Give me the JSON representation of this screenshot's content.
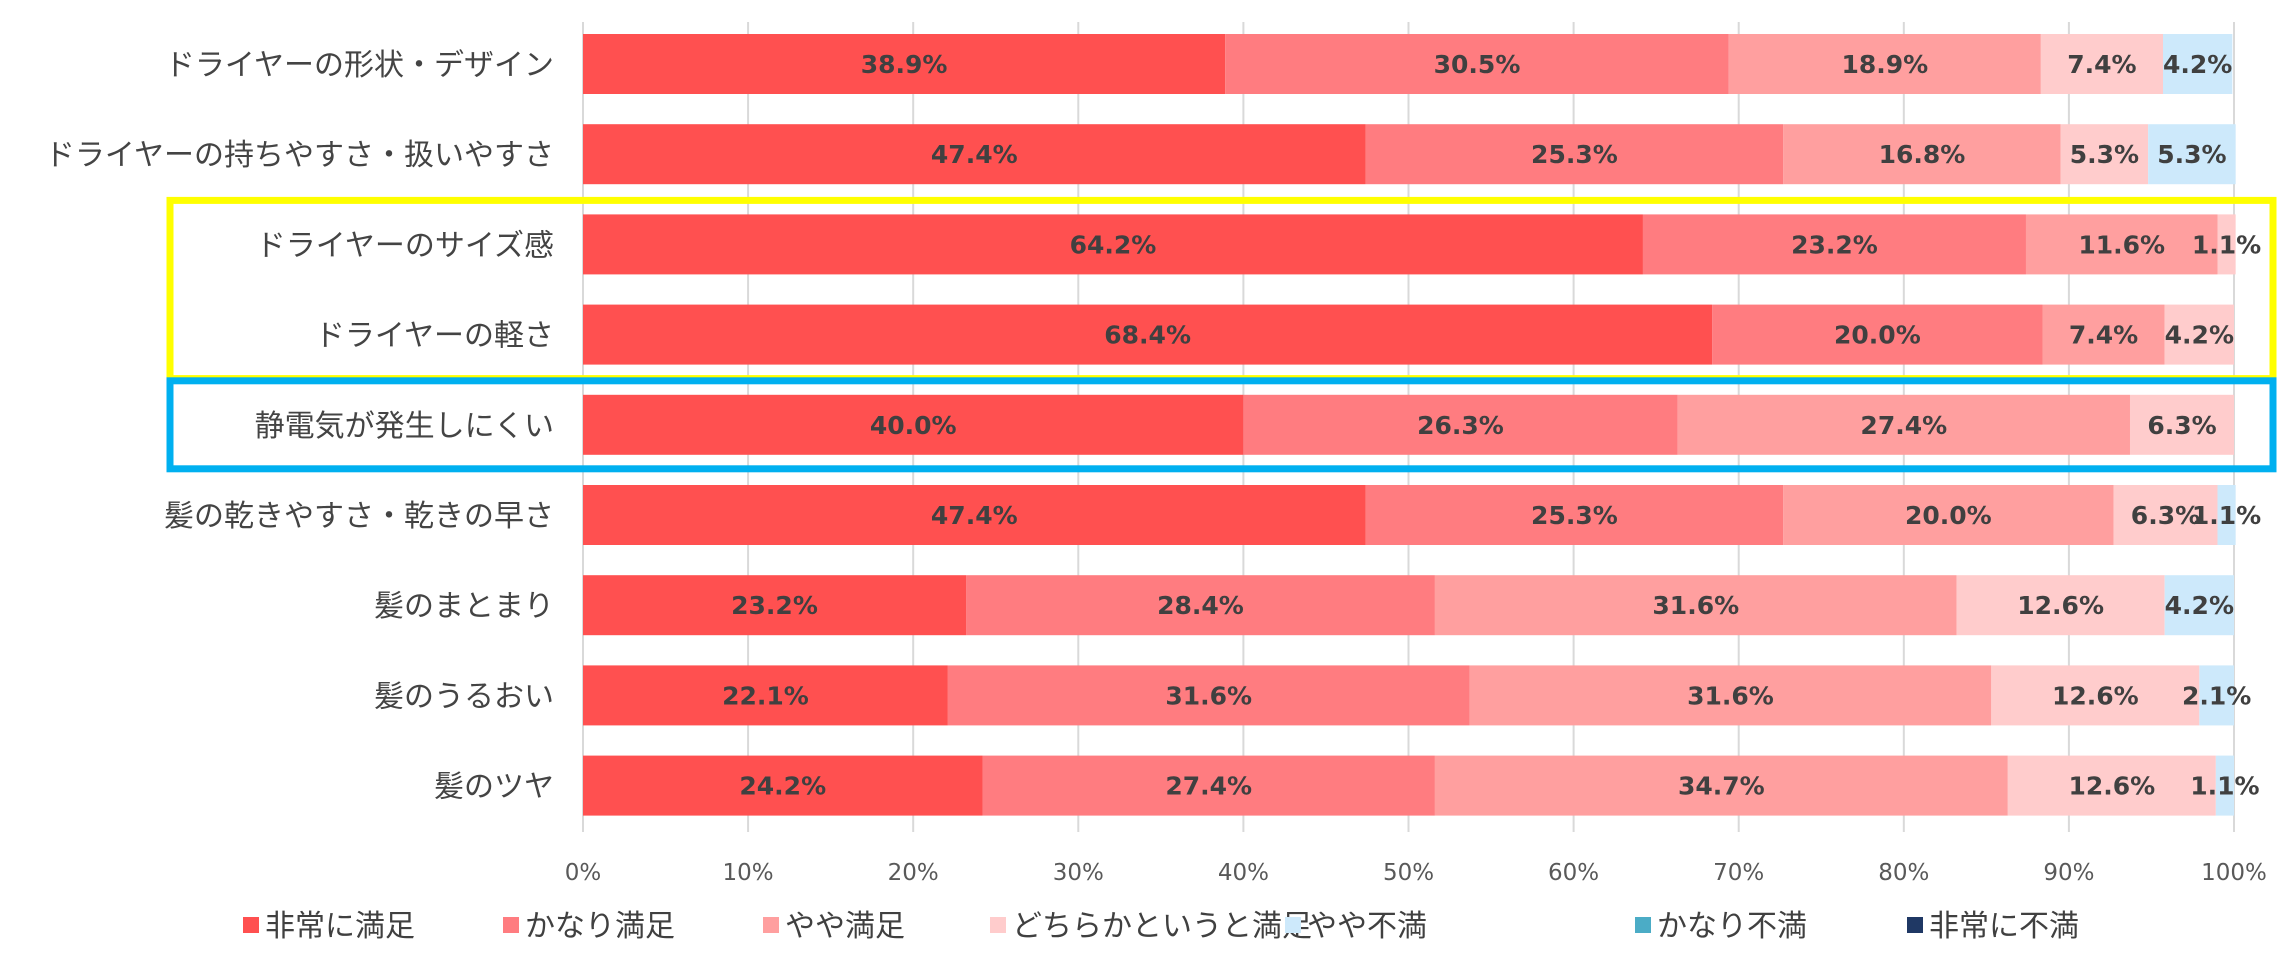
{
  "chart_data": {
    "type": "bar",
    "orientation": "horizontal",
    "stacked": true,
    "percent_stacked": true,
    "title": "",
    "xlabel": "",
    "ylabel": "",
    "xlim": [
      0,
      100
    ],
    "x_ticks": [
      "0%",
      "10%",
      "20%",
      "30%",
      "40%",
      "50%",
      "60%",
      "70%",
      "80%",
      "90%",
      "100%"
    ],
    "grid": "vertical",
    "legend_position": "bottom",
    "categories": [
      "ドライヤーの形状・デザイン",
      "ドライヤーの持ちやすさ・扱いやすさ",
      "ドライヤーのサイズ感",
      "ドライヤーの軽さ",
      "静電気が発生しにくい",
      "髪の乾きやすさ・乾きの早さ",
      "髪のまとまり",
      "髪のうるおい",
      "髪のツヤ"
    ],
    "series": [
      {
        "name": "非常に満足",
        "color": "#FF5050",
        "values": [
          38.9,
          47.4,
          64.2,
          68.4,
          40.0,
          47.4,
          23.2,
          22.1,
          24.2
        ]
      },
      {
        "name": "かなり満足",
        "color": "#FF7C80",
        "values": [
          30.5,
          25.3,
          23.2,
          20.0,
          26.3,
          25.3,
          28.4,
          31.6,
          27.4
        ]
      },
      {
        "name": "やや満足",
        "color": "#FF9F9F",
        "values": [
          18.9,
          16.8,
          11.6,
          7.4,
          27.4,
          20.0,
          31.6,
          31.6,
          34.7
        ]
      },
      {
        "name": "どちらかというと満足",
        "color": "#FFCCCC",
        "values": [
          7.4,
          5.3,
          1.1,
          4.2,
          6.3,
          6.3,
          12.6,
          12.6,
          12.6
        ]
      },
      {
        "name": "やや不満",
        "color": "#CDE9FB",
        "values": [
          4.2,
          5.3,
          0,
          0,
          0,
          1.1,
          4.2,
          2.1,
          1.1
        ]
      },
      {
        "name": "かなり不満",
        "color": "#4BACC6",
        "values": [
          0,
          0,
          0,
          0,
          0,
          0,
          0,
          0,
          0
        ]
      },
      {
        "name": "非常に不満",
        "color": "#1F3864",
        "values": [
          0,
          0,
          0,
          0,
          0,
          0,
          0,
          0,
          0
        ]
      }
    ],
    "value_labels": [
      [
        "38.9%",
        "30.5%",
        "18.9%",
        "7.4%",
        "4.2%",
        "",
        ""
      ],
      [
        "47.4%",
        "25.3%",
        "16.8%",
        "5.3%",
        "5.3%",
        "",
        ""
      ],
      [
        "64.2%",
        "23.2%",
        "11.6%",
        "1.1%",
        "",
        "",
        ""
      ],
      [
        "68.4%",
        "20.0%",
        "7.4%",
        "4.2%",
        "",
        "",
        ""
      ],
      [
        "40.0%",
        "26.3%",
        "27.4%",
        "6.3%",
        "",
        "",
        ""
      ],
      [
        "47.4%",
        "25.3%",
        "20.0%",
        "6.3%",
        "1.1%",
        "",
        ""
      ],
      [
        "23.2%",
        "28.4%",
        "31.6%",
        "12.6%",
        "4.2%",
        "",
        ""
      ],
      [
        "22.1%",
        "31.6%",
        "31.6%",
        "12.6%",
        "2.1%",
        "",
        ""
      ],
      [
        "24.2%",
        "27.4%",
        "34.7%",
        "12.6%",
        "1.1%",
        "",
        ""
      ]
    ],
    "highlights": [
      {
        "name": "highlight-size-weight",
        "color": "#FFFF00",
        "first_category": 2,
        "last_category": 3
      },
      {
        "name": "highlight-static",
        "color": "#00B0F0",
        "first_category": 4,
        "last_category": 4
      }
    ]
  }
}
